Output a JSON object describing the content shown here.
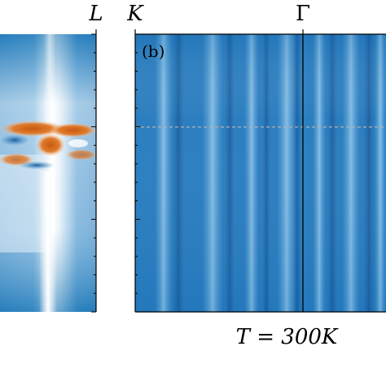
{
  "chart_data": [
    {
      "type": "heatmap",
      "panel": "a",
      "x_tick_labels": [
        "L"
      ],
      "title": "",
      "xlabel": "",
      "ylabel": "",
      "colormap": "diverging blue-white-orange",
      "grid": false
    },
    {
      "type": "heatmap",
      "panel": "b",
      "panel_label": "(b)",
      "x_tick_labels": [
        "K",
        "Γ"
      ],
      "annotation": "T = 300K",
      "title": "",
      "xlabel": "",
      "ylabel": "",
      "colormap": "blue",
      "reference_line": "dashed horizontal",
      "grid": false
    }
  ],
  "colors": {
    "deep_blue": "#1f77b4",
    "light_blue": "#6fb0dc",
    "white": "#ffffff",
    "orange": "#d2691e"
  }
}
